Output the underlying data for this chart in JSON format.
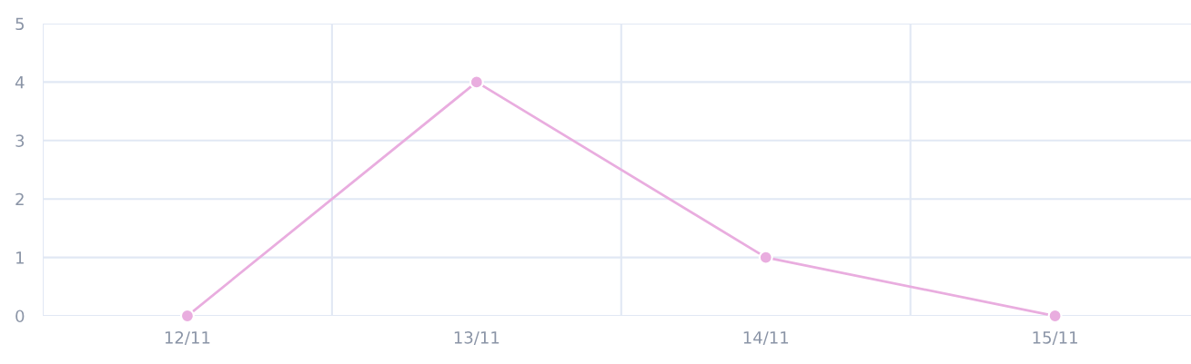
{
  "chart_data": {
    "type": "line",
    "categories": [
      "12/11",
      "13/11",
      "14/11",
      "15/11"
    ],
    "series": [
      {
        "color": "#e9addf",
        "values": [
          0,
          4,
          1,
          0
        ]
      }
    ],
    "ylim": [
      0,
      5
    ],
    "yticks": [
      0,
      1,
      2,
      3,
      4,
      5
    ],
    "grid": true,
    "marker": "circle",
    "line_style": "solid",
    "legend": false
  }
}
